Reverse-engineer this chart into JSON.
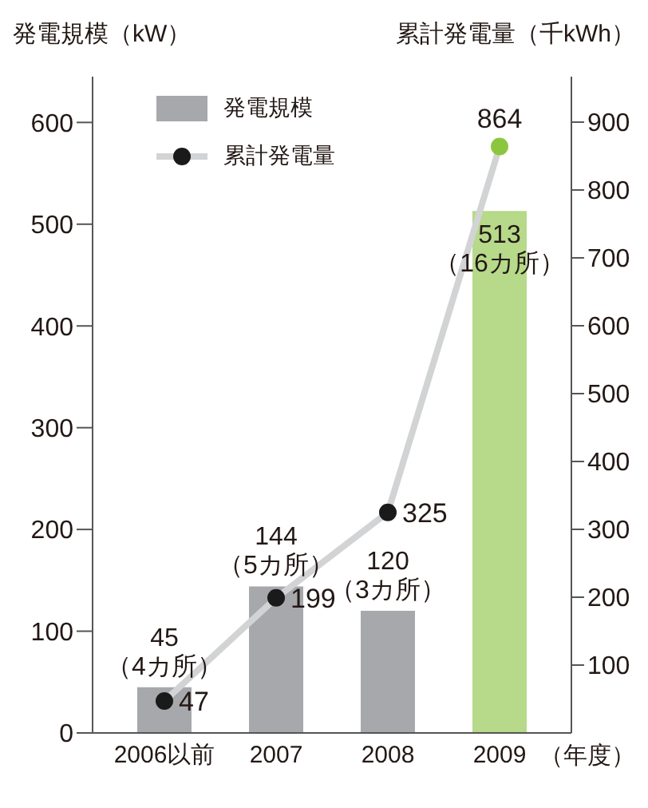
{
  "chart_data": {
    "type": "bar",
    "ylabel": "発電規模（kW）",
    "y2label": "累計発電量（千kWh）",
    "xlabel": "（年度）",
    "categories": [
      "2006以前",
      "2007",
      "2008",
      "2009"
    ],
    "series": [
      {
        "name": "発電規模",
        "values": [
          45,
          144,
          120,
          513
        ],
        "colors": [
          "#a7a8ab",
          "#a7a8ab",
          "#a7a8ab",
          "#b6d98a"
        ],
        "value_labels": [
          "45\n（4カ所）",
          "144\n（5カ所）",
          "120\n（3カ所）",
          "513\n（16カ所）"
        ]
      },
      {
        "name": "累計発電量",
        "type": "line",
        "axis": "y2",
        "color": "#d2d3d4",
        "colors": [
          "#1a1a1a",
          "#1a1a1a",
          "#1a1a1a",
          "#8cc63f"
        ],
        "values": [
          47,
          199,
          325,
          864
        ],
        "data_labels": true,
        "marker": "circle"
      }
    ],
    "ylim": [
      0,
      645
    ],
    "yticks": [
      0,
      100,
      200,
      300,
      400,
      500,
      600
    ],
    "y2lim": [
      0,
      967
    ],
    "y2ticks": [
      100,
      200,
      300,
      400,
      500,
      600,
      700,
      800,
      900
    ],
    "legend": "top left"
  }
}
